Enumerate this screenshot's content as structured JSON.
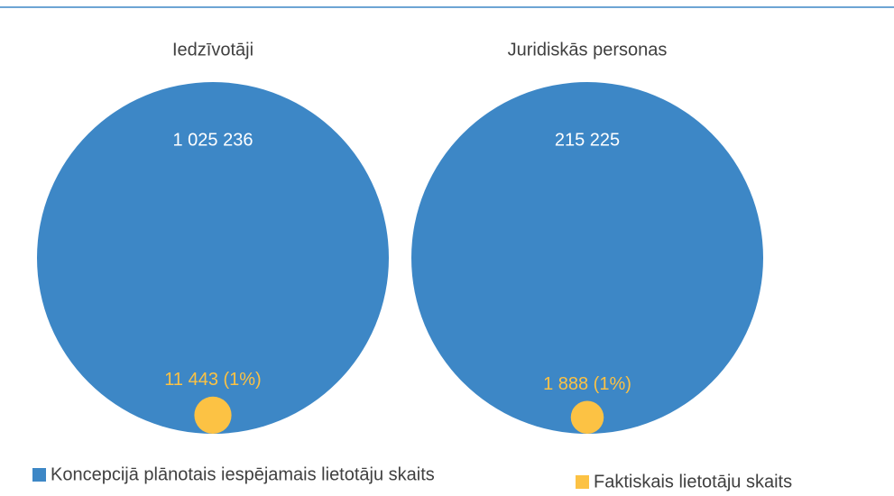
{
  "chart_data": {
    "type": "circles",
    "categories": [
      "Iedzīvotāji",
      "Juridiskās personas"
    ],
    "series": [
      {
        "name": "Koncepcijā plānotais iespējamais lietotāju skaits",
        "color": "#3d87c6",
        "values": [
          1025236,
          215225
        ],
        "value_labels": [
          "1 025 236",
          "215 225"
        ]
      },
      {
        "name": "Faktiskais lietotāju skaits",
        "color": "#fcc244",
        "values": [
          11443,
          1888
        ],
        "value_labels": [
          "11 443 (1%)",
          "1 888 (1%)"
        ]
      }
    ]
  }
}
